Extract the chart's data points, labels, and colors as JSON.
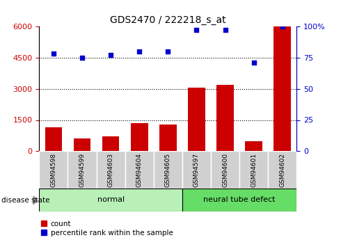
{
  "title": "GDS2470 / 222218_s_at",
  "samples": [
    "GSM94598",
    "GSM94599",
    "GSM94603",
    "GSM94604",
    "GSM94605",
    "GSM94597",
    "GSM94600",
    "GSM94601",
    "GSM94602"
  ],
  "counts": [
    1150,
    620,
    700,
    1350,
    1280,
    3050,
    3200,
    480,
    6000
  ],
  "percentile_ranks": [
    78,
    75,
    77,
    80,
    80,
    97,
    97,
    71,
    100
  ],
  "groups": [
    {
      "label": "normal",
      "start": 0,
      "end": 5,
      "color": "#b8f0b8"
    },
    {
      "label": "neural tube defect",
      "start": 5,
      "end": 9,
      "color": "#66dd66"
    }
  ],
  "bar_color": "#cc0000",
  "dot_color": "#0000cc",
  "left_yaxis_ticks": [
    0,
    1500,
    3000,
    4500,
    6000
  ],
  "left_yaxis_color": "#cc0000",
  "right_yaxis_ticks": [
    0,
    25,
    50,
    75,
    100
  ],
  "right_yaxis_color": "#0000cc",
  "grid_values": [
    1500,
    3000,
    4500
  ],
  "tick_label_bg": "#d0d0d0",
  "disease_state_label": "disease state",
  "legend_count_label": "count",
  "legend_pct_label": "percentile rank within the sample"
}
